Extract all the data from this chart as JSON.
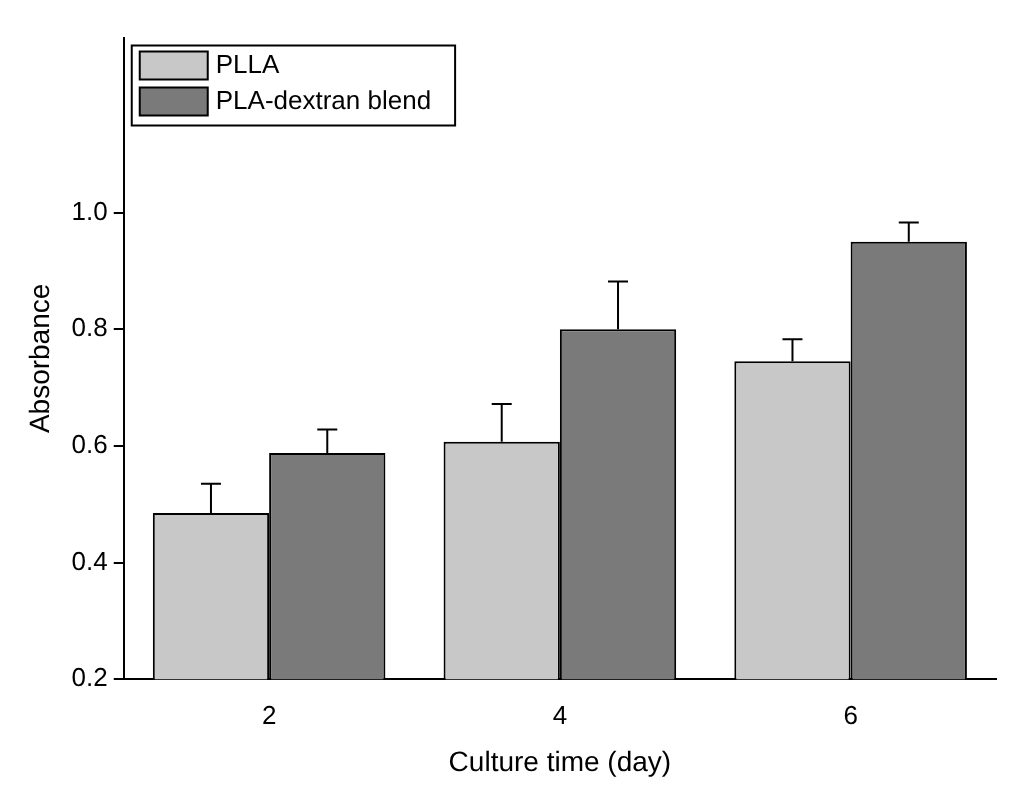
{
  "chart_data": {
    "type": "bar",
    "xlabel": "Culture time (day)",
    "ylabel": "Absorbance",
    "categories": [
      "2",
      "4",
      "6"
    ],
    "ylim": [
      0.2,
      1.3
    ],
    "yticks": [
      0.2,
      0.4,
      0.6,
      0.8,
      {
        "value": 1,
        "label": "1.0"
      }
    ],
    "legend": "top left",
    "grid": false,
    "series": [
      {
        "name": "PLLA",
        "color": "#c8c8c8",
        "values": [
          0.485,
          0.607,
          0.745
        ],
        "errors": [
          [
            0.485,
            0.535
          ],
          [
            0.607,
            0.672
          ],
          [
            0.745,
            0.783
          ]
        ]
      },
      {
        "name": "PLA-dextran blend",
        "color": "#7a7a7a",
        "values": [
          0.588,
          0.8,
          0.95
        ],
        "errors": [
          [
            0.588,
            0.628
          ],
          [
            0.8,
            0.882
          ],
          [
            0.95,
            0.983
          ]
        ]
      }
    ]
  }
}
